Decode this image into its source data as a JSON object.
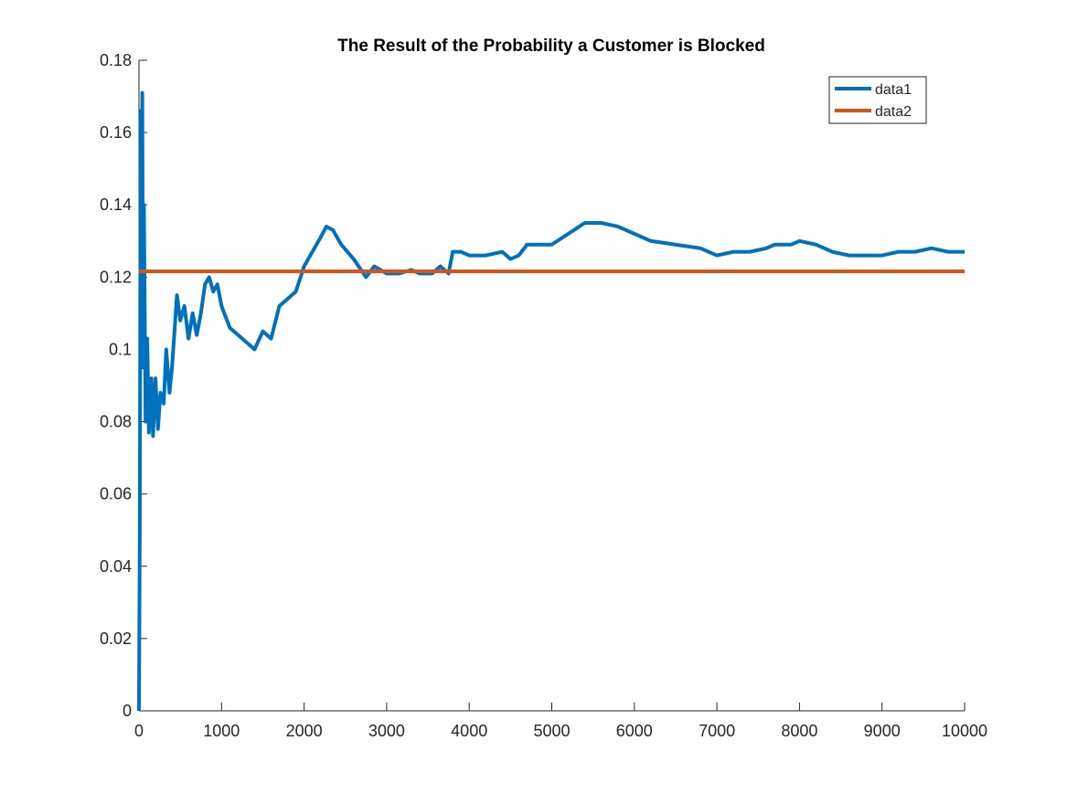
{
  "chart_data": {
    "type": "line",
    "title": "The Result of the Probability a Customer is Blocked",
    "series": [
      {
        "name": "data1",
        "color": "#0072bd",
        "x": [
          0,
          10,
          20,
          30,
          40,
          50,
          60,
          80,
          100,
          120,
          150,
          170,
          200,
          230,
          260,
          300,
          330,
          370,
          400,
          430,
          460,
          500,
          550,
          600,
          650,
          700,
          750,
          800,
          850,
          900,
          950,
          1000,
          1100,
          1200,
          1300,
          1400,
          1500,
          1600,
          1700,
          1800,
          1900,
          2000,
          2100,
          2200,
          2270,
          2350,
          2450,
          2600,
          2750,
          2850,
          3000,
          3150,
          3300,
          3400,
          3550,
          3650,
          3750,
          3800,
          3900,
          4000,
          4200,
          4400,
          4500,
          4600,
          4700,
          4900,
          5000,
          5200,
          5400,
          5600,
          5800,
          6000,
          6200,
          6500,
          6800,
          7000,
          7200,
          7400,
          7600,
          7700,
          7900,
          8000,
          8200,
          8400,
          8600,
          8800,
          9000,
          9200,
          9400,
          9600,
          9800,
          10000
        ],
        "values": [
          0,
          0.05,
          0.166,
          0.1,
          0.171,
          0.095,
          0.14,
          0.08,
          0.103,
          0.077,
          0.092,
          0.076,
          0.092,
          0.078,
          0.088,
          0.085,
          0.1,
          0.088,
          0.095,
          0.105,
          0.115,
          0.108,
          0.112,
          0.103,
          0.11,
          0.104,
          0.11,
          0.118,
          0.12,
          0.116,
          0.118,
          0.112,
          0.106,
          0.104,
          0.102,
          0.1,
          0.105,
          0.103,
          0.112,
          0.114,
          0.116,
          0.123,
          0.127,
          0.131,
          0.134,
          0.133,
          0.129,
          0.125,
          0.12,
          0.123,
          0.121,
          0.121,
          0.122,
          0.121,
          0.121,
          0.123,
          0.121,
          0.127,
          0.127,
          0.126,
          0.126,
          0.127,
          0.125,
          0.126,
          0.129,
          0.129,
          0.129,
          0.132,
          0.135,
          0.135,
          0.134,
          0.132,
          0.13,
          0.129,
          0.128,
          0.126,
          0.127,
          0.127,
          0.128,
          0.129,
          0.129,
          0.13,
          0.129,
          0.127,
          0.126,
          0.126,
          0.126,
          0.127,
          0.127,
          0.128,
          0.127,
          0.127
        ]
      },
      {
        "name": "data2",
        "color": "#d95319",
        "x": [
          0,
          10000
        ],
        "values": [
          0.1216,
          0.1216
        ]
      }
    ],
    "xlim": [
      0,
      10000
    ],
    "xticks": [
      0,
      1000,
      2000,
      3000,
      4000,
      5000,
      6000,
      7000,
      8000,
      9000,
      10000
    ],
    "ylim": [
      0,
      0.18
    ],
    "yticks": [
      0,
      0.02,
      0.04,
      0.06,
      0.08,
      0.1,
      0.12,
      0.14,
      0.16,
      0.18
    ],
    "legend": "northeast"
  }
}
